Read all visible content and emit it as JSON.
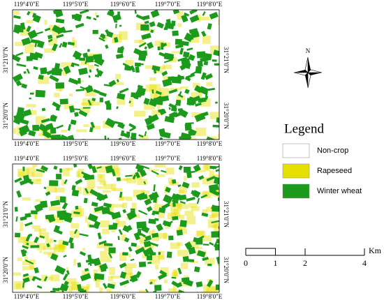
{
  "maps": [
    {
      "top_labels": [
        "119°4'0\"E",
        "119°5'0\"E",
        "119°6'0\"E",
        "119°7'0\"E",
        "119°8'0\"E"
      ],
      "bottom_labels": [
        "119°4'0\"E",
        "119°5'0\"E",
        "119°6'0\"E",
        "119°7'0\"E",
        "119°8'0\"E"
      ],
      "left_labels": [
        "31°21'0\"N",
        "31°20'0\"N"
      ],
      "right_labels": [
        "31°21'0\"N",
        "31°20'0\"N"
      ]
    },
    {
      "top_labels": [
        "119°4'0\"E",
        "119°5'0\"E",
        "119°6'0\"E",
        "119°7'0\"E",
        "119°8'0\"E"
      ],
      "bottom_labels": [
        "119°4'0\"E",
        "119°5'0\"E",
        "119°6'0\"E",
        "119°7'0\"E",
        "119°8'0\"E"
      ],
      "left_labels": [
        "31°21'0\"N",
        "31°20'0\"N"
      ],
      "right_labels": [
        "31°21'0\"N",
        "31°20'0\"N"
      ]
    }
  ],
  "north": "N",
  "legend": {
    "title": "Legend",
    "items": [
      {
        "label": "Non-crop",
        "color": "#ffffff"
      },
      {
        "label": "Rapeseed",
        "color": "#e6e000"
      },
      {
        "label": "Winter wheat",
        "color": "#1b9a1b"
      }
    ]
  },
  "scale_bar": {
    "unit": "Km",
    "ticks": [
      0,
      1,
      2,
      4
    ]
  }
}
